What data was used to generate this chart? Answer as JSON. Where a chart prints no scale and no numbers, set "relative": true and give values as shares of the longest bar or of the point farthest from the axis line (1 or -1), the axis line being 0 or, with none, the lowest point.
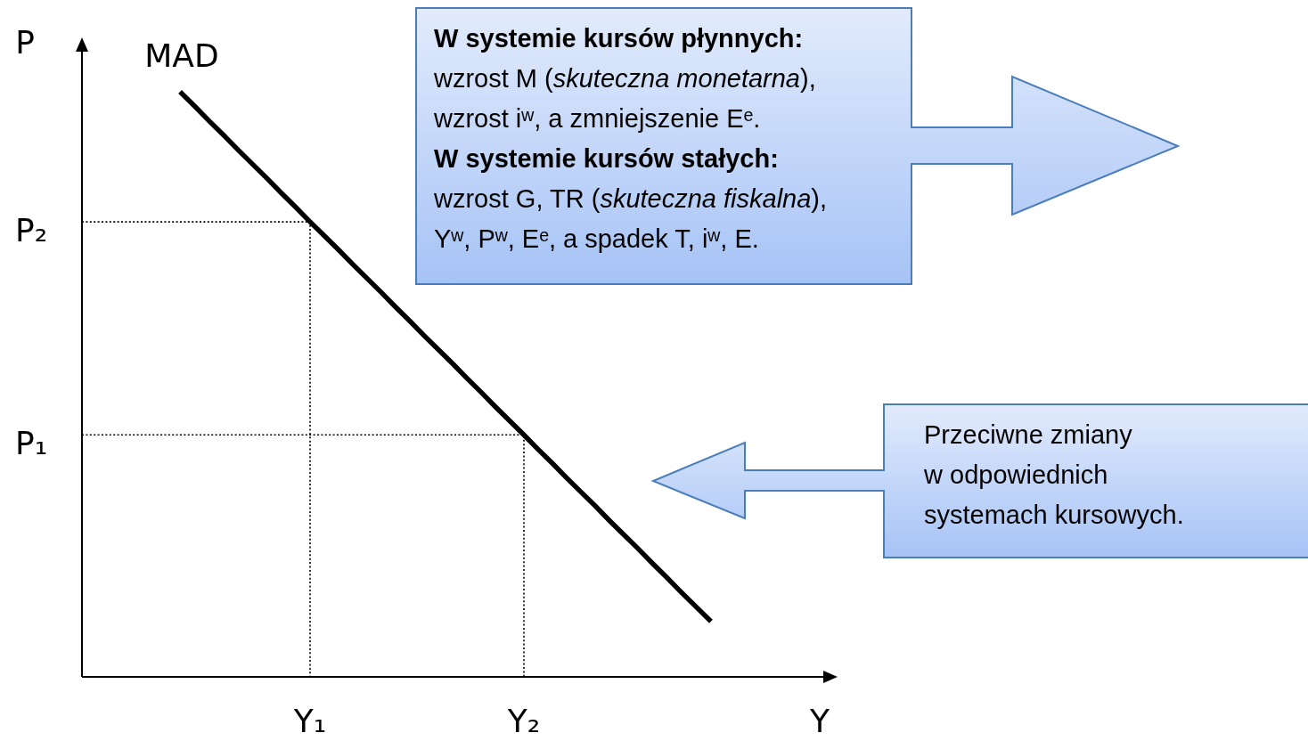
{
  "chart_data": {
    "type": "line",
    "relative": true,
    "xlabel": "Y",
    "ylabel": "P",
    "categories": [
      null,
      null,
      null,
      null,
      null,
      null,
      null,
      null,
      null,
      null,
      null,
      null,
      null,
      null,
      null,
      null,
      "Y₁",
      null,
      null,
      null,
      null,
      null,
      null,
      null,
      null,
      null,
      null,
      null,
      null,
      null,
      null,
      "Y₂",
      null,
      null,
      null,
      null,
      null,
      null,
      null,
      null,
      null,
      null,
      null,
      null,
      null,
      null,
      null,
      null,
      null,
      null,
      null,
      null,
      null,
      null
    ],
    "series": [
      {
        "name": "MAD",
        "color": "#000000",
        "line_style": "solid",
        "values": [
          null,
          null,
          null,
          null,
          null,
          null,
          null,
          1,
          0.976,
          0.951,
          0.927,
          0.902,
          0.878,
          0.854,
          0.829,
          0.805,
          0.78,
          0.756,
          0.732,
          0.707,
          0.683,
          0.659,
          0.634,
          0.61,
          0.585,
          0.561,
          0.537,
          0.512,
          0.488,
          0.463,
          0.439,
          0.415,
          0.39,
          0.366,
          0.341,
          0.317,
          0.293,
          0.268,
          0.244,
          0.22,
          0.195,
          0.171,
          0.146,
          0.122,
          0.098,
          null,
          null,
          null,
          null,
          null,
          null,
          null,
          null,
          null
        ]
      },
      {
        "type": "step",
        "color": "#000000",
        "line_style": "dotted",
        "values": [
          0.78,
          0.78,
          0.78,
          0.78,
          0.78,
          0.78,
          0.78,
          0.78,
          0.78,
          0.78,
          0.78,
          0.78,
          0.78,
          0.78,
          0.78,
          0.78,
          0,
          null,
          null,
          null,
          null,
          null,
          null,
          null,
          null,
          null,
          null,
          null,
          null,
          null,
          null,
          null,
          null,
          null,
          null,
          null,
          null,
          null,
          null,
          null,
          null,
          null,
          null,
          null,
          null,
          null,
          null,
          null,
          null,
          null,
          null,
          null,
          null,
          null
        ]
      },
      {
        "type": "step",
        "color": "#000000",
        "line_style": "dotted",
        "values": [
          0.415,
          0.415,
          0.415,
          0.415,
          0.415,
          0.415,
          0.415,
          0.415,
          0.415,
          0.415,
          0.415,
          0.415,
          0.415,
          0.415,
          0.415,
          0.415,
          0.415,
          0.415,
          0.415,
          0.415,
          0.415,
          0.415,
          0.415,
          0.415,
          0.415,
          0.415,
          0.415,
          0.415,
          0.415,
          0.415,
          0.415,
          0,
          null,
          null,
          null,
          null,
          null,
          null,
          null,
          null,
          null,
          null,
          null,
          null,
          null,
          null,
          null,
          null,
          null,
          null,
          null,
          null,
          null,
          null
        ]
      }
    ],
    "annotations": [
      "W systemie kursów płynnych:\nwzrost M (skuteczna monetarna),\nwzrost iʷ, a zmniejszenie Eᵉ.\nW systemie kursów stałych:\nwzrost G, TR (skuteczna fiskalna),\nYʷ, Pʷ, Eᵉ, a spadek T, iʷ, E.",
      "Przeciwne zmiany\nw odpowiednich\nsystemach kursowych.",
      "P₂",
      "P₁"
    ]
  }
}
